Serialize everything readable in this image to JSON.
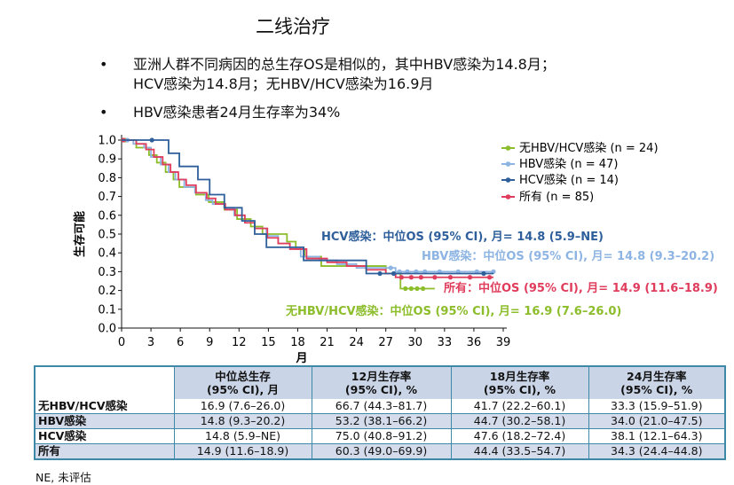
{
  "title": "二线治疗",
  "bullets": [
    "亚洲人群不同病因的总生存OS是相似的，其中HBV感染为14.8月；",
    "HCV感染为14.8月；无HBV/HCV感染为16.9月",
    "HBV感染患者24月生存率为34%"
  ],
  "bullet_symbol": "•",
  "chart_data": {
    "type": "line",
    "title": "",
    "xlabel": "月",
    "ylabel": "生存可能",
    "xlim": [
      0,
      39
    ],
    "ylim": [
      0,
      1.0
    ],
    "xticks": [
      0,
      3,
      6,
      9,
      12,
      15,
      18,
      21,
      24,
      27,
      30,
      33,
      36,
      39
    ],
    "yticks": [
      "0.0",
      "0.1",
      "0.2",
      "0.3",
      "0.4",
      "0.5",
      "0.6",
      "0.7",
      "0.8",
      "0.9",
      "1.0"
    ],
    "legend_position": "top-right",
    "series": [
      {
        "name": "无HBV/HCV感染 (n = 24)",
        "color": "#8cbd2a",
        "annotation": "无HBV/HCV感染：中位OS (95% CI), 月= 16.9 (7.6–26.0)",
        "steps": [
          [
            0,
            1.0
          ],
          [
            1.5,
            0.96
          ],
          [
            2.8,
            0.92
          ],
          [
            3.6,
            0.88
          ],
          [
            4.5,
            0.83
          ],
          [
            5.3,
            0.79
          ],
          [
            5.9,
            0.75
          ],
          [
            7.6,
            0.71
          ],
          [
            8.9,
            0.67
          ],
          [
            10.5,
            0.63
          ],
          [
            11.8,
            0.58
          ],
          [
            13.2,
            0.54
          ],
          [
            14.4,
            0.5
          ],
          [
            16.9,
            0.46
          ],
          [
            17.8,
            0.42
          ],
          [
            18.7,
            0.38
          ],
          [
            20.4,
            0.33
          ],
          [
            27.0,
            0.29
          ],
          [
            28.5,
            0.21
          ],
          [
            32.0,
            0.21
          ]
        ],
        "censors": [
          [
            0.4,
            1.0
          ],
          [
            29.0,
            0.21
          ],
          [
            29.6,
            0.21
          ],
          [
            30.2,
            0.21
          ],
          [
            30.8,
            0.21
          ]
        ]
      },
      {
        "name": "HBV感染 (n = 47)",
        "color": "#8db4e2",
        "annotation": "HBV感染：中位OS (95% CI), 月= 14.8 (9.3–20.2)",
        "steps": [
          [
            0,
            1.0
          ],
          [
            1.2,
            0.98
          ],
          [
            2.3,
            0.96
          ],
          [
            3.0,
            0.91
          ],
          [
            4.0,
            0.87
          ],
          [
            4.8,
            0.83
          ],
          [
            5.5,
            0.79
          ],
          [
            6.4,
            0.75
          ],
          [
            7.5,
            0.72
          ],
          [
            8.6,
            0.68
          ],
          [
            9.3,
            0.66
          ],
          [
            10.5,
            0.64
          ],
          [
            11.5,
            0.6
          ],
          [
            12.3,
            0.57
          ],
          [
            13.6,
            0.53
          ],
          [
            14.8,
            0.49
          ],
          [
            16.0,
            0.45
          ],
          [
            17.2,
            0.43
          ],
          [
            18.3,
            0.38
          ],
          [
            20.2,
            0.36
          ],
          [
            22.0,
            0.34
          ],
          [
            24.0,
            0.32
          ],
          [
            26.0,
            0.32
          ],
          [
            28.0,
            0.3
          ],
          [
            38.0,
            0.3
          ]
        ],
        "censors": [
          [
            0.6,
            1.0
          ],
          [
            27.5,
            0.32
          ],
          [
            28.4,
            0.3
          ],
          [
            29.2,
            0.3
          ],
          [
            30.1,
            0.3
          ],
          [
            31.0,
            0.3
          ],
          [
            32.5,
            0.3
          ],
          [
            34.4,
            0.3
          ],
          [
            36.3,
            0.3
          ],
          [
            38.0,
            0.3
          ]
        ]
      },
      {
        "name": "HCV感染 (n = 14)",
        "color": "#2e5f9b",
        "annotation": "HCV感染：中位OS (95% CI), 月= 14.8 (5.9–NE)",
        "steps": [
          [
            0,
            1.0
          ],
          [
            4.8,
            0.93
          ],
          [
            5.9,
            0.86
          ],
          [
            7.8,
            0.79
          ],
          [
            9.0,
            0.71
          ],
          [
            10.5,
            0.64
          ],
          [
            12.3,
            0.57
          ],
          [
            13.6,
            0.5
          ],
          [
            14.8,
            0.43
          ],
          [
            18.6,
            0.36
          ],
          [
            23.5,
            0.36
          ],
          [
            25.0,
            0.29
          ],
          [
            38.0,
            0.29
          ]
        ],
        "censors": [
          [
            3.1,
            1.0
          ],
          [
            26.4,
            0.29
          ],
          [
            27.8,
            0.29
          ],
          [
            37.0,
            0.29
          ]
        ]
      },
      {
        "name": "所有 (n = 85)",
        "color": "#e03c5c",
        "annotation": "所有：中位OS (95% CI), 月= 14.9 (11.6–18.9)",
        "steps": [
          [
            0,
            1.0
          ],
          [
            1.5,
            0.98
          ],
          [
            2.5,
            0.95
          ],
          [
            3.3,
            0.91
          ],
          [
            4.2,
            0.87
          ],
          [
            5.0,
            0.83
          ],
          [
            5.8,
            0.79
          ],
          [
            6.6,
            0.76
          ],
          [
            7.6,
            0.72
          ],
          [
            8.7,
            0.69
          ],
          [
            9.6,
            0.66
          ],
          [
            10.6,
            0.63
          ],
          [
            11.6,
            0.6
          ],
          [
            12.6,
            0.56
          ],
          [
            13.6,
            0.53
          ],
          [
            14.9,
            0.48
          ],
          [
            16.0,
            0.45
          ],
          [
            17.2,
            0.42
          ],
          [
            18.9,
            0.37
          ],
          [
            21.0,
            0.35
          ],
          [
            23.0,
            0.33
          ],
          [
            25.0,
            0.31
          ],
          [
            27.0,
            0.29
          ],
          [
            28.0,
            0.27
          ],
          [
            38.0,
            0.27
          ]
        ],
        "censors": [
          [
            0.2,
            1.0
          ],
          [
            28.6,
            0.27
          ],
          [
            29.6,
            0.27
          ],
          [
            30.6,
            0.27
          ],
          [
            32.0,
            0.27
          ],
          [
            33.6,
            0.27
          ],
          [
            35.6,
            0.27
          ],
          [
            37.6,
            0.27
          ]
        ]
      }
    ]
  },
  "table": {
    "headers": [
      "",
      "中位总生存\n(95% CI), 月",
      "12月生存率\n(95% CI), %",
      "18月生存率\n(95% CI), %",
      "24月生存率\n(95% CI), %"
    ],
    "rows": [
      [
        "无HBV/HCV感染",
        "16.9 (7.6–26.0)",
        "66.7 (44.3–81.7)",
        "41.7 (22.2–60.1)",
        "33.3 (15.9–51.9)"
      ],
      [
        "HBV感染",
        "14.8 (9.3–20.2)",
        "53.2 (38.1–66.2)",
        "44.7 (30.2–58.1)",
        "34.0 (21.0–47.5)"
      ],
      [
        "HCV感染",
        "14.8 (5.9–NE)",
        "75.0 (40.8–91.2)",
        "47.6 (18.2–72.4)",
        "38.1 (12.1–64.3)"
      ],
      [
        "所有",
        "14.9 (11.6–18.9)",
        "60.3 (49.0–69.9)",
        "44.4 (33.5–54.7)",
        "34.3 (24.4–44.8)"
      ]
    ]
  },
  "footnote": "NE, 未评估"
}
